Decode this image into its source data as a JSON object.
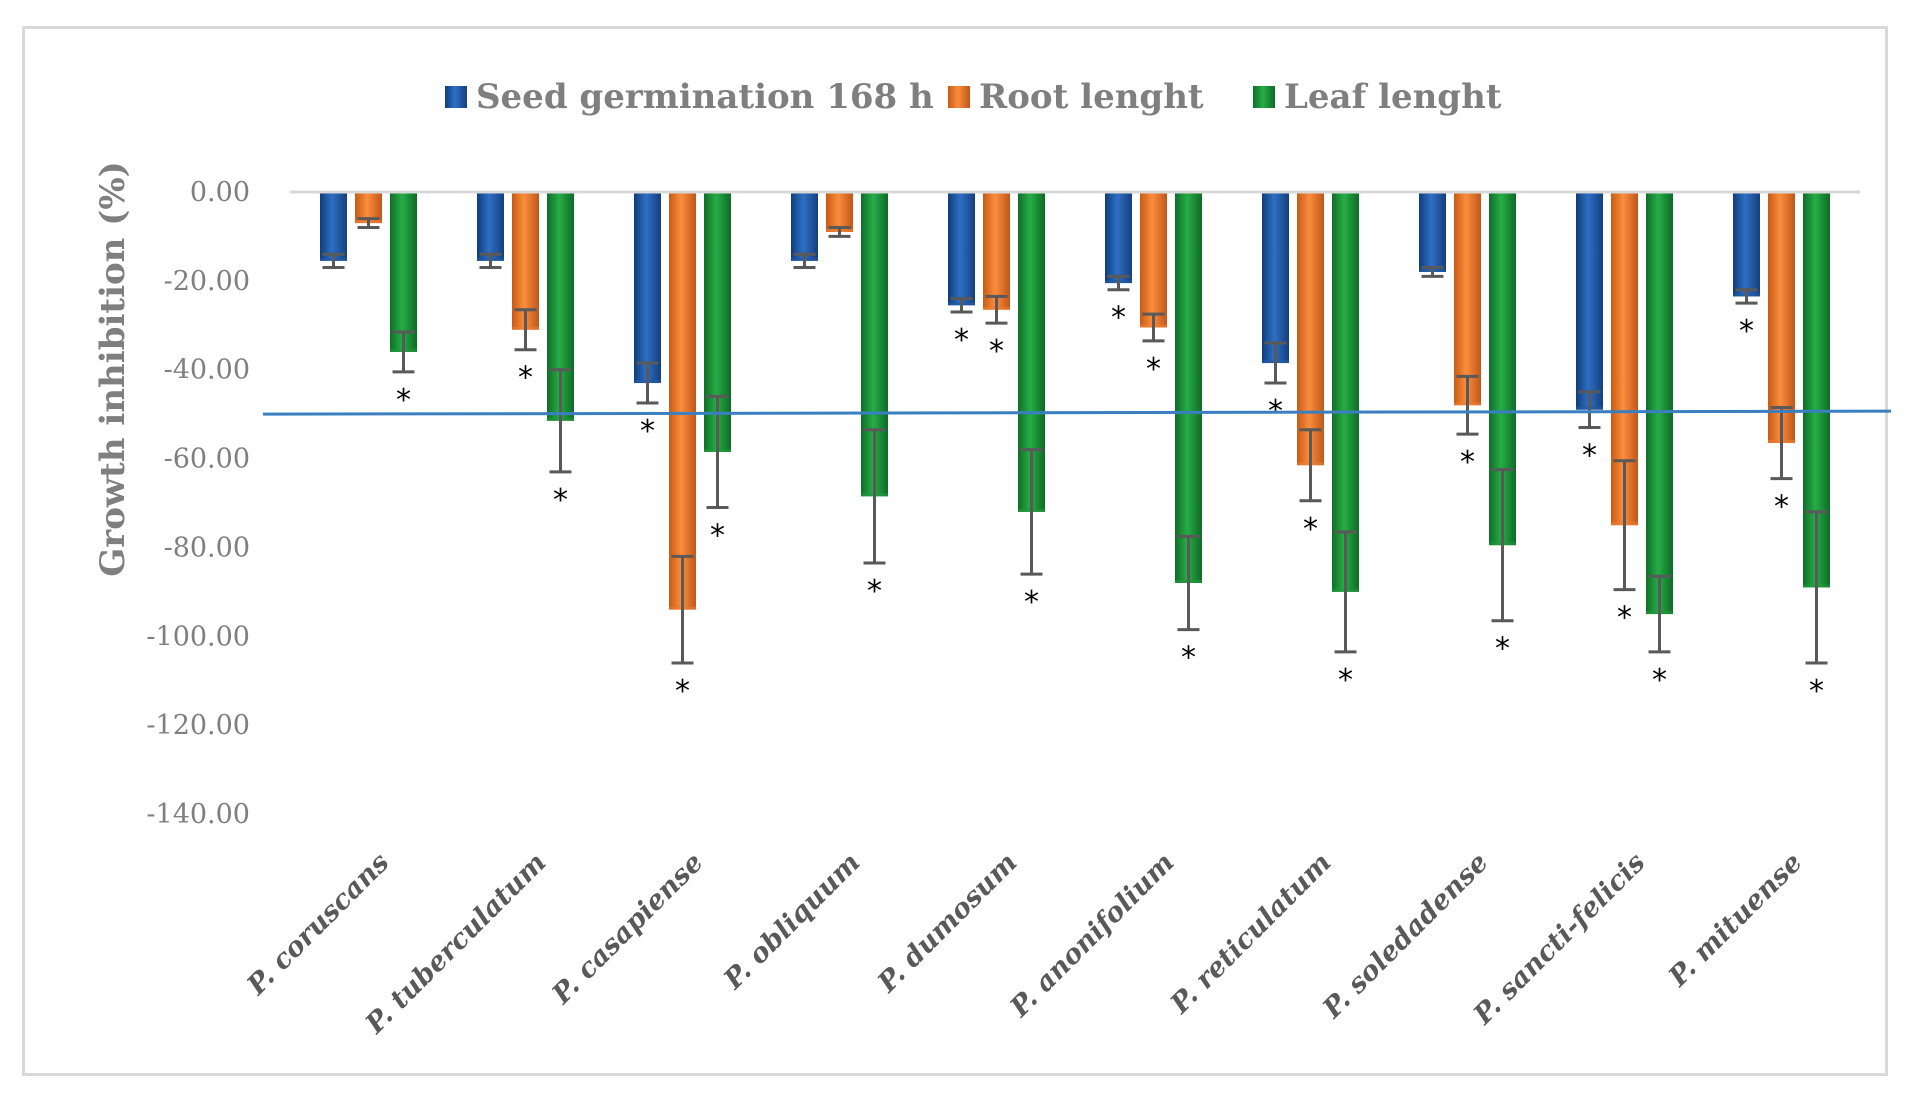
{
  "chart_data": {
    "type": "bar",
    "title": "",
    "xlabel": "",
    "ylabel": "Growth inhibition (%)",
    "ylim": [
      -140,
      0
    ],
    "yticks": [
      0,
      -20,
      -40,
      -60,
      -80,
      -100,
      -120,
      -140
    ],
    "ytick_labels": [
      "0.00",
      "-20.00",
      "-40.00",
      "-60.00",
      "-80.00",
      "-100.00",
      "-120.00",
      "-140.00"
    ],
    "reference_line": -50,
    "legend_position": "top",
    "categories": [
      "P. coruscans",
      "P. tuberculatum",
      "P. casapiense",
      "P. obliquum",
      "P. dumosum",
      "P. anonifolium",
      "P. reticulatum",
      "P. soledadense",
      "P. sancti-felicis",
      "P. mituense"
    ],
    "series": [
      {
        "name": "Seed germination 168 h",
        "color": "#1f5aa6",
        "values": [
          -15.5,
          -15.5,
          -43,
          -15.5,
          -25.5,
          -20.5,
          -38.5,
          -18,
          -49,
          -23.5
        ],
        "errors": [
          1.5,
          1.5,
          4.5,
          1.5,
          1.5,
          1.5,
          4.5,
          1,
          4,
          1.5
        ],
        "significant": [
          false,
          false,
          true,
          false,
          true,
          true,
          true,
          false,
          true,
          true
        ]
      },
      {
        "name": "Root lenght",
        "color": "#ed7d31",
        "values": [
          -7,
          -31,
          -94,
          -9,
          -26.5,
          -30.5,
          -61.5,
          -48,
          -75,
          -56.5
        ],
        "errors": [
          1,
          4.5,
          12,
          1,
          3,
          3,
          8,
          6.5,
          14.5,
          8
        ],
        "significant": [
          false,
          true,
          true,
          false,
          true,
          true,
          true,
          true,
          true,
          true
        ]
      },
      {
        "name": "Leaf lenght",
        "color": "#1e9a3b",
        "values": [
          -36,
          -51.5,
          -58.5,
          -68.5,
          -72,
          -88,
          -90,
          -79.5,
          -95,
          -89
        ],
        "errors": [
          4.5,
          11.5,
          12.5,
          15,
          14,
          10.5,
          13.5,
          17,
          8.5,
          17
        ],
        "significant": [
          true,
          true,
          true,
          true,
          true,
          true,
          true,
          true,
          true,
          true
        ]
      }
    ]
  },
  "significance_marker": "*"
}
